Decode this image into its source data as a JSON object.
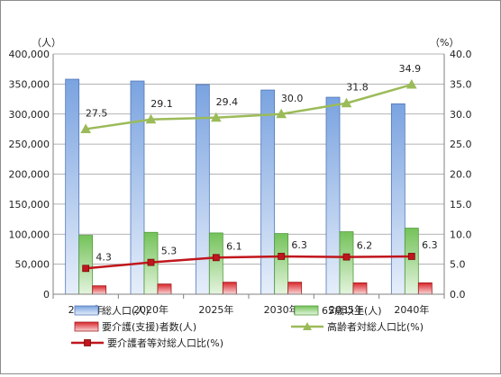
{
  "chart_data": {
    "type": "bar+line",
    "title": "",
    "categories": [
      "2015年",
      "2020年",
      "2025年",
      "2030年",
      "2035年",
      "2040年"
    ],
    "y_left": {
      "unit_label": "（人）",
      "min": 0,
      "max": 400000,
      "step": 50000,
      "tick_labels": [
        "0",
        "50,000",
        "100,000",
        "150,000",
        "200,000",
        "250,000",
        "300,000",
        "350,000",
        "400,000"
      ]
    },
    "y_right": {
      "unit_label": "（%）",
      "min": 0,
      "max": 40,
      "step": 5,
      "tick_labels": [
        "0.0",
        "5.0",
        "10.0",
        "15.0",
        "20.0",
        "25.0",
        "30.0",
        "35.0",
        "40.0"
      ]
    },
    "grid": true,
    "legend_position": "bottom",
    "bar_series": [
      {
        "name": "総人口(人)",
        "axis": "left",
        "color_top": "#7aa3e0",
        "color_bottom": "#e6eefa",
        "border": "#4f77b8",
        "values": [
          358000,
          355000,
          349000,
          340000,
          328000,
          317000
        ]
      },
      {
        "name": "65歳以上(人)",
        "axis": "left",
        "color_top": "#74c25a",
        "color_bottom": "#e5f4df",
        "border": "#4f9a39",
        "values": [
          98000,
          103000,
          102000,
          101000,
          104000,
          110000
        ]
      },
      {
        "name": "要介護(支援)者数(人)",
        "axis": "left",
        "color_top": "#d9262b",
        "color_bottom": "#f9d6d7",
        "border": "#a11b1f",
        "values": [
          14000,
          17000,
          20000,
          20000,
          19000,
          19000
        ]
      }
    ],
    "line_series": [
      {
        "name": "高齢者対総人口比(%)",
        "axis": "right",
        "color": "#9bbb59",
        "marker": "triangle",
        "values": [
          27.5,
          29.1,
          29.4,
          30.0,
          31.8,
          34.9
        ],
        "labels": [
          "27.5",
          "29.1",
          "29.4",
          "30.0",
          "31.8",
          "34.9"
        ]
      },
      {
        "name": "要介護者等対総人口比(%)",
        "axis": "right",
        "color": "#c0161c",
        "marker": "square",
        "values": [
          4.3,
          5.3,
          6.1,
          6.3,
          6.2,
          6.3
        ],
        "labels": [
          "4.3",
          "5.3",
          "6.1",
          "6.3",
          "6.2",
          "6.3"
        ]
      }
    ]
  }
}
